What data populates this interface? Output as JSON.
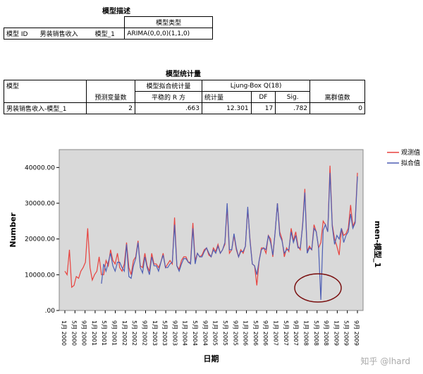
{
  "model_desc": {
    "title": "模型描述",
    "header_type": "模型类型",
    "row_label": "模型 ID",
    "row_name": "男装销售收入",
    "row_model": "模型_1",
    "row_type": "ARIMA(0,0,0)(1,1,0)"
  },
  "model_stats": {
    "title": "模型统计量",
    "h_model": "模型",
    "h_predictors": "预测变量数",
    "h_fit": "模型拟合统计量",
    "h_stat_r": "平稳的 R 方",
    "h_ljung": "Ljung-Box Q(18)",
    "h_stat": "统计量",
    "h_df": "DF",
    "h_sig": "Sig.",
    "h_outliers": "离群值数",
    "row": {
      "model": "男装销售收入-模型_1",
      "predictors": "2",
      "r2": ".663",
      "stat": "12.301",
      "df": "17",
      "sig": ".782",
      "outliers": "0"
    }
  },
  "chart_data": {
    "type": "line",
    "ylabel": "Number",
    "xlabel": "日期",
    "right_label": "men-模型_1",
    "ylim": [
      0,
      45000
    ],
    "yticks": [
      "40000.00",
      "30000.00",
      "20000.00",
      "10000.00",
      ".00"
    ],
    "xticks": [
      "1月 2000",
      "5月 2000",
      "9月 2000",
      "1月 2001",
      "5月 2001",
      "9月 2001",
      "1月 2002",
      "5月 2002",
      "9月 2002",
      "1月 2003",
      "5月 2003",
      "9月 2003",
      "1月 2004",
      "5月 2004",
      "9月 2004",
      "1月 2005",
      "5月 2005",
      "9月 2005",
      "1月 2006",
      "5月 2006",
      "9月 2006",
      "1月 2007",
      "5月 2007",
      "9月 2007",
      "1月 2008",
      "5月 2008",
      "9月 2008",
      "1月 2009",
      "5月 2009",
      "9月 2009"
    ],
    "series": [
      {
        "name": "观测值",
        "color": "#e8423e",
        "values": [
          11000,
          10000,
          17000,
          6500,
          7000,
          9500,
          9000,
          11000,
          12000,
          13500,
          23000,
          12000,
          8500,
          10000,
          11000,
          15000,
          10000,
          10000,
          14000,
          12500,
          17000,
          14000,
          13000,
          16000,
          12000,
          11000,
          13000,
          19000,
          12000,
          10000,
          14000,
          15000,
          19500,
          12500,
          12000,
          16000,
          12500,
          11000,
          16000,
          13000,
          13000,
          12000,
          13500,
          16000,
          12000,
          13000,
          14000,
          13000,
          26000,
          12500,
          11500,
          14000,
          15000,
          15000,
          13500,
          13500,
          24500,
          14000,
          16000,
          15000,
          15500,
          17000,
          17500,
          15500,
          15000,
          17500,
          16500,
          18500,
          16000,
          17000,
          18500,
          29000,
          16000,
          17000,
          21000,
          17000,
          15000,
          17000,
          16000,
          18000,
          28500,
          20000,
          13000,
          12500,
          7000,
          14000,
          17500,
          17500,
          16000,
          21000,
          20000,
          15000,
          22000,
          30000,
          22000,
          20000,
          15000,
          17500,
          16500,
          23000,
          19500,
          22000,
          18000,
          17000,
          24000,
          34000,
          16500,
          18000,
          17000,
          24000,
          22000,
          17500,
          19000,
          25000,
          24000,
          22000,
          40500,
          24000,
          20000,
          18000,
          15500,
          23000,
          21000,
          21500,
          23000,
          29500,
          23500,
          25000,
          38500
        ]
      },
      {
        "name": "拟合值",
        "color": "#4e5fb4",
        "values": [
          null,
          null,
          null,
          null,
          null,
          null,
          null,
          null,
          null,
          null,
          null,
          null,
          null,
          null,
          null,
          null,
          7500,
          13000,
          11000,
          13500,
          16000,
          12500,
          11000,
          13500,
          13500,
          12000,
          11000,
          18500,
          9500,
          9000,
          12500,
          14500,
          19000,
          12000,
          10500,
          15000,
          12000,
          10000,
          15000,
          12500,
          12500,
          11000,
          13500,
          15500,
          12000,
          12000,
          13000,
          13500,
          24000,
          12500,
          11000,
          13000,
          14500,
          14500,
          13500,
          13000,
          23000,
          13000,
          16000,
          15000,
          15000,
          16500,
          17500,
          16000,
          15000,
          17000,
          16000,
          18000,
          16000,
          17000,
          19000,
          30000,
          17000,
          17000,
          21500,
          17500,
          15000,
          16500,
          16500,
          18000,
          29000,
          19500,
          13000,
          12500,
          10000,
          14000,
          17000,
          17500,
          17000,
          21000,
          19000,
          15500,
          22000,
          30000,
          21000,
          19500,
          16000,
          17000,
          17000,
          22000,
          19000,
          21000,
          17500,
          17500,
          23500,
          33000,
          16000,
          17500,
          17000,
          23000,
          22000,
          17500,
          3000,
          22500,
          24000,
          22000,
          38500,
          23500,
          18500,
          21000,
          20000,
          23000,
          19000,
          21000,
          22000,
          27000,
          23000,
          24500,
          37500
        ]
      }
    ],
    "legend": "top-right",
    "annotation": "ellipse-highlight"
  },
  "watermark": "知乎 @lhard"
}
